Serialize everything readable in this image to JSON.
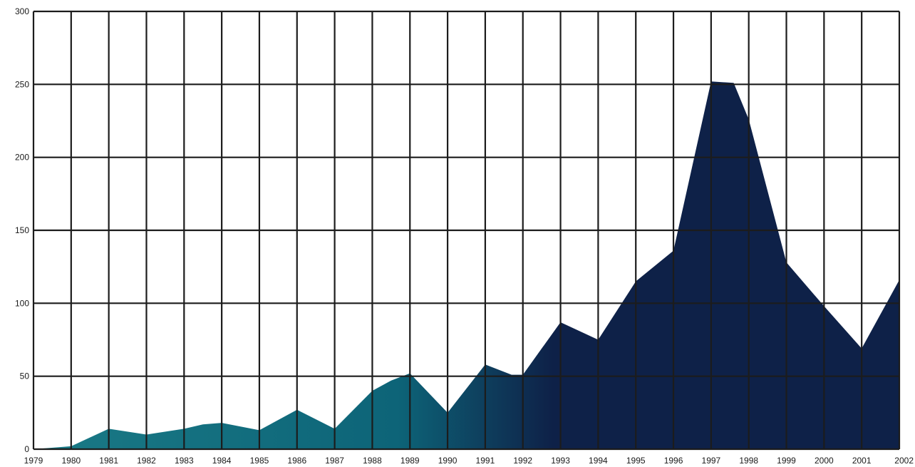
{
  "chart_data": {
    "type": "area",
    "title": "",
    "xlabel": "",
    "ylabel": "",
    "x": [
      1979,
      1980,
      1981,
      1982,
      1983,
      1984,
      1985,
      1986,
      1987,
      1988,
      1989,
      1990,
      1991,
      1992,
      1993,
      1994,
      1995,
      1996,
      1997,
      1998,
      1999,
      2000,
      2001,
      2002
    ],
    "points": [
      [
        1979,
        0
      ],
      [
        1980,
        2
      ],
      [
        1981,
        14
      ],
      [
        1982,
        10
      ],
      [
        1983,
        14
      ],
      [
        1983.5,
        17
      ],
      [
        1984,
        18
      ],
      [
        1985,
        13
      ],
      [
        1986,
        27
      ],
      [
        1987,
        14
      ],
      [
        1988,
        40
      ],
      [
        1988.5,
        47
      ],
      [
        1989,
        52
      ],
      [
        1990,
        25
      ],
      [
        1991,
        58
      ],
      [
        1991.7,
        51
      ],
      [
        1992,
        51
      ],
      [
        1993,
        87
      ],
      [
        1994,
        75
      ],
      [
        1995,
        115
      ],
      [
        1996,
        136
      ],
      [
        1997,
        252
      ],
      [
        1997.6,
        251
      ],
      [
        1998,
        226
      ],
      [
        1999,
        128
      ],
      [
        2000,
        98
      ],
      [
        2001,
        69
      ],
      [
        2002,
        116
      ]
    ],
    "ylim": [
      0,
      300
    ],
    "yticks": [
      0,
      50,
      100,
      150,
      200,
      250,
      300
    ],
    "xtick_labels": [
      "1979",
      "1980",
      "1981",
      "1982",
      "1983",
      "1984",
      "1985",
      "1986",
      "1987",
      "1988",
      "1989",
      "1990",
      "1991",
      "1992",
      "1993",
      "1994",
      "1995",
      "1996",
      "1997",
      "1998",
      "1999",
      "2000",
      "2001",
      "2002"
    ],
    "ytick_labels": [
      "0",
      "50",
      "100",
      "150",
      "200",
      "250",
      "300"
    ],
    "grid": true,
    "colors": {
      "fill_start": "#1a7a86",
      "fill_mid": "#0d6478",
      "fill_end": "#0e2148",
      "grid": "#1c1c1c"
    }
  }
}
